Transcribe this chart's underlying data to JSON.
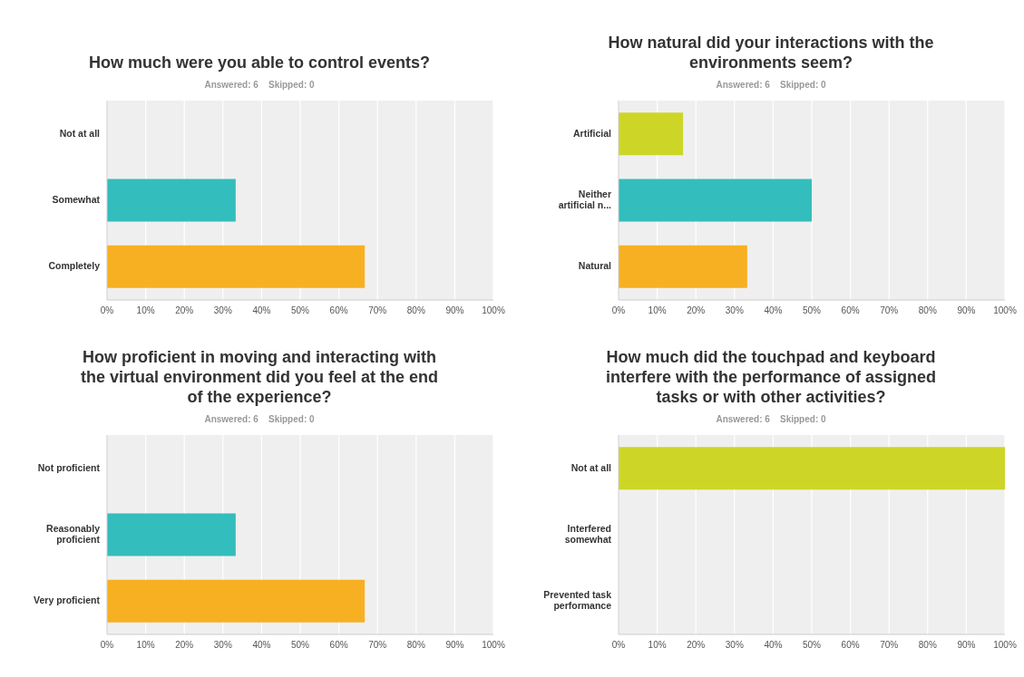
{
  "chart_data": [
    {
      "type": "bar",
      "orientation": "horizontal",
      "title": "How much were you able to control events?",
      "subtitle": "Answered: 6    Skipped: 0",
      "categories": [
        "Not at all",
        "Somewhat",
        "Completely"
      ],
      "values": [
        0,
        33.3,
        66.7
      ],
      "colors": [
        "#cdd627",
        "#33bdbd",
        "#f7b022"
      ],
      "xlim": [
        0,
        100
      ],
      "xticks": [
        {
          "value": 0,
          "label": "0%"
        },
        {
          "value": 10,
          "label": "10%"
        },
        {
          "value": 20,
          "label": "20%"
        },
        {
          "value": 30,
          "label": "30%"
        },
        {
          "value": 40,
          "label": "40%"
        },
        {
          "value": 50,
          "label": "50%"
        },
        {
          "value": 60,
          "label": "60%"
        },
        {
          "value": 70,
          "label": "70%"
        },
        {
          "value": 80,
          "label": "80%"
        },
        {
          "value": 90,
          "label": "90%"
        },
        {
          "value": 100,
          "label": "100%"
        }
      ],
      "grid": "x"
    },
    {
      "type": "bar",
      "orientation": "horizontal",
      "title": "How natural did your interactions with the environments seem?",
      "subtitle": "Answered: 6    Skipped: 0",
      "categories": [
        "Artificial",
        "Neither artificial n...",
        "Natural"
      ],
      "values": [
        16.7,
        50,
        33.3
      ],
      "colors": [
        "#cdd627",
        "#33bdbd",
        "#f7b022"
      ],
      "xlim": [
        0,
        100
      ],
      "xticks": [
        {
          "value": 0,
          "label": "0%"
        },
        {
          "value": 10,
          "label": "10%"
        },
        {
          "value": 20,
          "label": "20%"
        },
        {
          "value": 30,
          "label": "30%"
        },
        {
          "value": 40,
          "label": "40%"
        },
        {
          "value": 50,
          "label": "50%"
        },
        {
          "value": 60,
          "label": "60%"
        },
        {
          "value": 70,
          "label": "70%"
        },
        {
          "value": 80,
          "label": "80%"
        },
        {
          "value": 90,
          "label": "90%"
        },
        {
          "value": 100,
          "label": "100%"
        }
      ],
      "grid": "x"
    },
    {
      "type": "bar",
      "orientation": "horizontal",
      "title": "How proficient in moving and interacting with the virtual environment did you feel at the end of the experience?",
      "subtitle": "Answered: 6    Skipped: 0",
      "categories": [
        "Not proficient",
        "Reasonably proficient",
        "Very proficient"
      ],
      "values": [
        0,
        33.3,
        66.7
      ],
      "colors": [
        "#cdd627",
        "#33bdbd",
        "#f7b022"
      ],
      "xlim": [
        0,
        100
      ],
      "xticks": [
        {
          "value": 0,
          "label": "0%"
        },
        {
          "value": 10,
          "label": "10%"
        },
        {
          "value": 20,
          "label": "20%"
        },
        {
          "value": 30,
          "label": "30%"
        },
        {
          "value": 40,
          "label": "40%"
        },
        {
          "value": 50,
          "label": "50%"
        },
        {
          "value": 60,
          "label": "60%"
        },
        {
          "value": 70,
          "label": "70%"
        },
        {
          "value": 80,
          "label": "80%"
        },
        {
          "value": 90,
          "label": "90%"
        },
        {
          "value": 100,
          "label": "100%"
        }
      ],
      "grid": "x"
    },
    {
      "type": "bar",
      "orientation": "horizontal",
      "title": "How much did the touchpad and keyboard interfere with the performance of assigned tasks or with other activities?",
      "subtitle": "Answered: 6    Skipped: 0",
      "categories": [
        "Not at all",
        "Interfered somewhat",
        "Prevented task performance"
      ],
      "values": [
        100,
        0,
        0
      ],
      "colors": [
        "#cdd627",
        "#33bdbd",
        "#f7b022"
      ],
      "xlim": [
        0,
        100
      ],
      "xticks": [
        {
          "value": 0,
          "label": "0%"
        },
        {
          "value": 10,
          "label": "10%"
        },
        {
          "value": 20,
          "label": "20%"
        },
        {
          "value": 30,
          "label": "30%"
        },
        {
          "value": 40,
          "label": "40%"
        },
        {
          "value": 50,
          "label": "50%"
        },
        {
          "value": 60,
          "label": "60%"
        },
        {
          "value": 70,
          "label": "70%"
        },
        {
          "value": 80,
          "label": "80%"
        },
        {
          "value": 90,
          "label": "90%"
        },
        {
          "value": 100,
          "label": "100%"
        }
      ],
      "grid": "x"
    }
  ]
}
